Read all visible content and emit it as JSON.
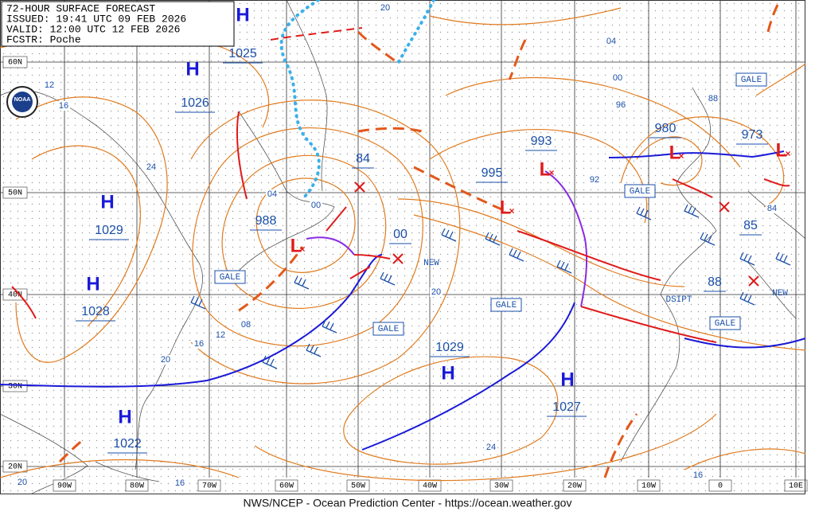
{
  "header": {
    "lines": [
      "72-HOUR SURFACE FORECAST",
      "ISSUED: 19:41 UTC 09 FEB 2026",
      "VALID: 12:00 UTC 12 FEB 2026",
      "FCSTR: Poche"
    ]
  },
  "footer": "NWS/NCEP - Ocean Prediction Center - https://ocean.weather.gov",
  "logo": "NOAA",
  "lat_labels": [
    "60N",
    "50N",
    "40N",
    "30N",
    "20N"
  ],
  "lon_labels": [
    "90W",
    "80W",
    "70W",
    "60W",
    "50W",
    "40W",
    "30W",
    "20W",
    "10W",
    "0",
    "10E"
  ],
  "highs": [
    {
      "symbol": "H",
      "pressure": "1025"
    },
    {
      "symbol": "H",
      "pressure": "1026"
    },
    {
      "symbol": "H",
      "pressure": "1029"
    },
    {
      "symbol": "H",
      "pressure": "1028"
    },
    {
      "symbol": "H",
      "pressure": "1022"
    },
    {
      "symbol": "H",
      "pressure": "1029"
    },
    {
      "symbol": "H",
      "pressure": "1027"
    }
  ],
  "lows": [
    {
      "symbol": "L",
      "pressure": "988"
    },
    {
      "symbol": "L",
      "pressure": "995"
    },
    {
      "symbol": "L",
      "pressure": "993"
    },
    {
      "symbol": "L",
      "pressure": "980"
    },
    {
      "symbol": "L",
      "pressure": "973"
    }
  ],
  "forming_lows": [
    "84",
    "00",
    "85",
    "88"
  ],
  "gale_labels": [
    "GALE",
    "GALE",
    "GALE",
    "GALE",
    "GALE",
    "GALE"
  ],
  "notes": [
    "NEW",
    "NEW",
    "DSIPT"
  ],
  "isobar_labels": [
    "04",
    "00",
    "96",
    "92",
    "88",
    "84",
    "20",
    "04",
    "00",
    "20",
    "24",
    "16",
    "12",
    "12",
    "16",
    "08",
    "20",
    "24",
    "16",
    "16",
    "20"
  ]
}
